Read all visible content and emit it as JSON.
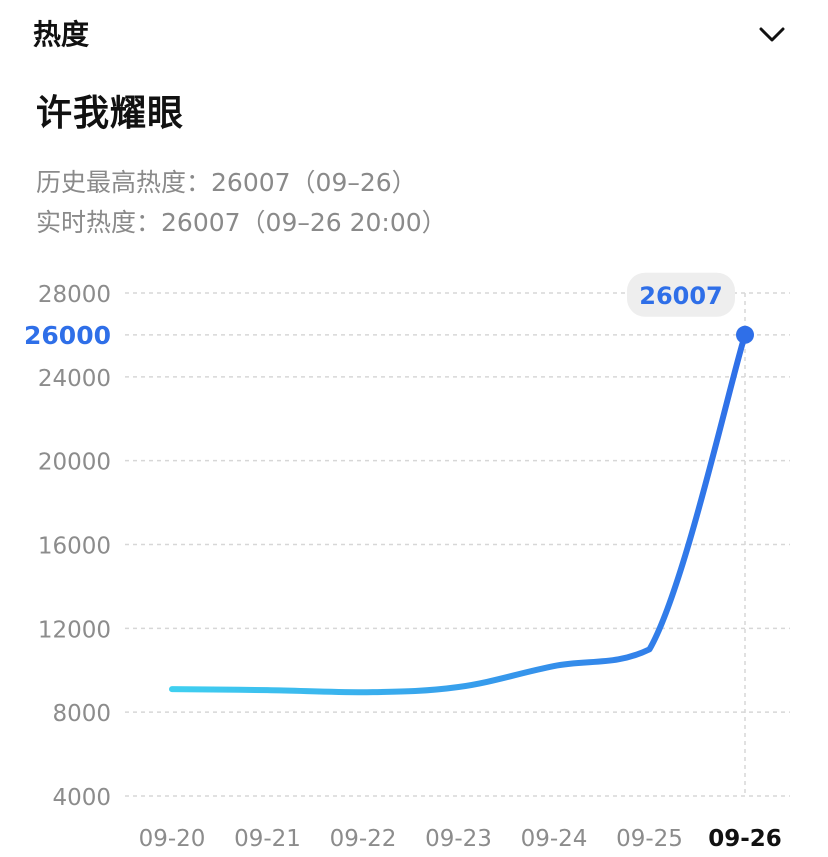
{
  "header": {
    "title": "热度",
    "chevron_icon": "chevron-down-icon"
  },
  "topic": {
    "title": "许我耀眼"
  },
  "stats": {
    "max_label": "历史最高热度：",
    "max_value": "26007（09–26）",
    "realtime_label": "实时热度：",
    "realtime_value": "26007（09–26 20:00）"
  },
  "colors": {
    "line_start": "#3fd0f0",
    "line_end": "#2f6fe8",
    "highlight_tick": "#2f6fe8",
    "grid": "#d7d7d7",
    "tick_text": "#8c8c8c",
    "callout_bg": "#eeeeee"
  },
  "chart_data": {
    "type": "line",
    "categories": [
      "09-20",
      "09-21",
      "09-22",
      "09-23",
      "09-24",
      "09-25",
      "09-26"
    ],
    "values": [
      9100,
      9050,
      8950,
      9200,
      10200,
      11000,
      26007
    ],
    "y_ticks": [
      "4000",
      "8000",
      "12000",
      "16000",
      "20000",
      "24000",
      "26000",
      "28000"
    ],
    "highlight_tick": "26000",
    "callout_value": "26007",
    "ylim": [
      4000,
      28000
    ],
    "grid": true,
    "title": "",
    "xlabel": "",
    "ylabel": ""
  }
}
